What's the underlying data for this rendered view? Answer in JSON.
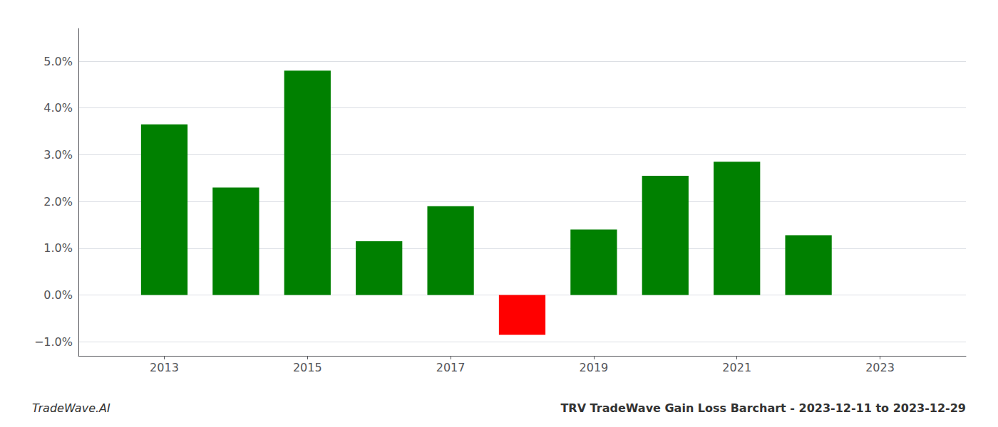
{
  "chart_data": {
    "type": "bar",
    "title": "TRV TradeWave Gain Loss Barchart - 2023-12-11 to 2023-12-29",
    "annotations": [
      "TradeWave.AI"
    ],
    "x": [
      2013,
      2014,
      2015,
      2016,
      2017,
      2018,
      2019,
      2020,
      2021,
      2022
    ],
    "values": [
      0.0365,
      0.023,
      0.048,
      0.0115,
      0.019,
      -0.0085,
      0.014,
      0.0255,
      0.0285,
      0.0128
    ],
    "colors": [
      "#008000",
      "#008000",
      "#008000",
      "#008000",
      "#008000",
      "#ff0000",
      "#008000",
      "#008000",
      "#008000",
      "#008000"
    ],
    "xlim": [
      2011.8,
      2024.2
    ],
    "xticks": [
      2013,
      2015,
      2017,
      2019,
      2021,
      2023
    ],
    "ylim": [
      -0.013,
      0.057
    ],
    "yticks": [
      {
        "value": -0.01,
        "label": "−1.0%"
      },
      {
        "value": 0.0,
        "label": "0.0%"
      },
      {
        "value": 0.01,
        "label": "1.0%"
      },
      {
        "value": 0.02,
        "label": "2.0%"
      },
      {
        "value": 0.03,
        "label": "3.0%"
      },
      {
        "value": 0.04,
        "label": "4.0%"
      },
      {
        "value": 0.05,
        "label": "5.0%"
      }
    ],
    "grid": true
  }
}
